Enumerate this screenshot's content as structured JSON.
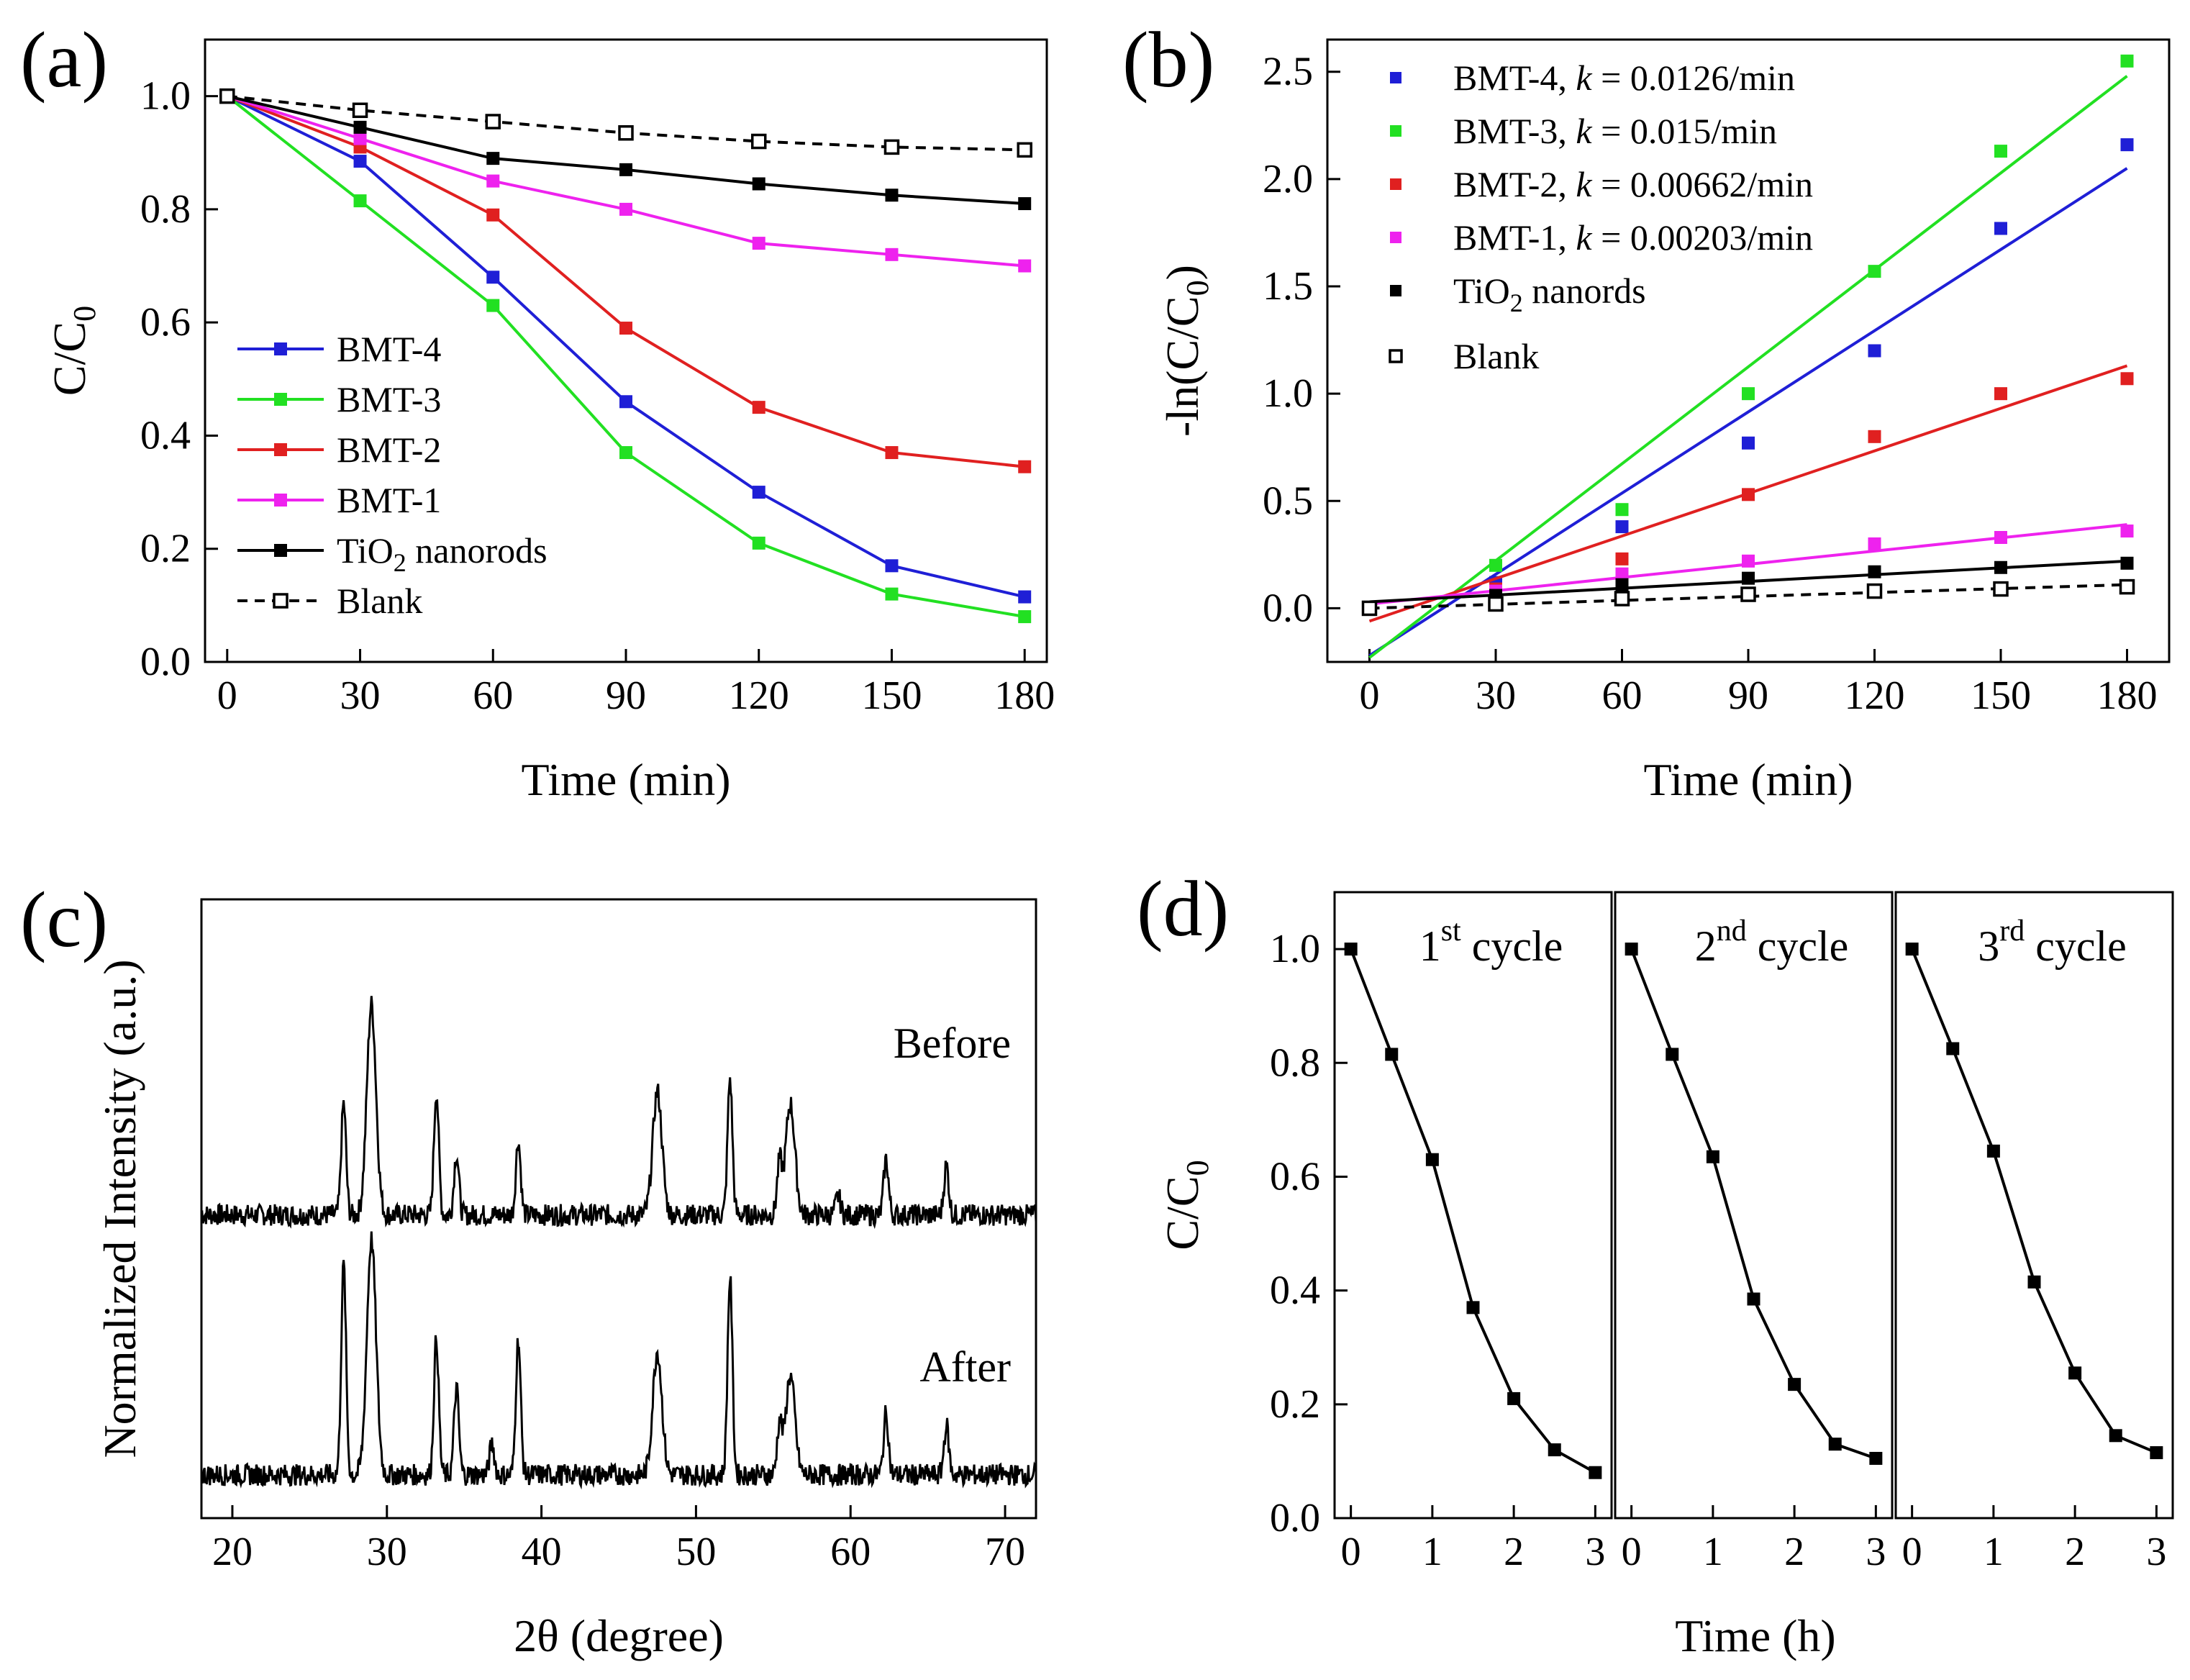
{
  "chart_data": [
    {
      "panel": "(a)",
      "type": "line",
      "xlabel": "Time (min)",
      "ylabel": "C/C",
      "ylabel_sub": "0",
      "xlim": [
        -5,
        185
      ],
      "ylim": [
        0.0,
        1.1
      ],
      "xticks": [
        0,
        30,
        60,
        90,
        120,
        150,
        180
      ],
      "yticks": [
        0.0,
        0.2,
        0.4,
        0.6,
        0.8,
        1.0
      ],
      "x": [
        0,
        30,
        60,
        90,
        120,
        150,
        180
      ],
      "series": [
        {
          "name": "BMT-4",
          "color": "#1f1fd6",
          "values": [
            1.0,
            0.885,
            0.68,
            0.46,
            0.3,
            0.17,
            0.115
          ]
        },
        {
          "name": "BMT-3",
          "color": "#22e022",
          "values": [
            1.0,
            0.815,
            0.63,
            0.37,
            0.21,
            0.12,
            0.08
          ]
        },
        {
          "name": "BMT-2",
          "color": "#e02020",
          "values": [
            1.0,
            0.91,
            0.79,
            0.59,
            0.45,
            0.37,
            0.345
          ]
        },
        {
          "name": "BMT-1",
          "color": "#ee22ee",
          "values": [
            1.0,
            0.925,
            0.85,
            0.8,
            0.74,
            0.72,
            0.7
          ]
        },
        {
          "name": "TiO",
          "name_sub": "2",
          "name_suffix": " nanorods",
          "color": "#000000",
          "values": [
            1.0,
            0.945,
            0.89,
            0.87,
            0.845,
            0.825,
            0.81
          ]
        },
        {
          "name": "Blank",
          "color": "#000000",
          "dashed": true,
          "open_marker": true,
          "values": [
            1.0,
            0.975,
            0.955,
            0.935,
            0.92,
            0.91,
            0.905
          ]
        }
      ]
    },
    {
      "panel": "(b)",
      "type": "scatter",
      "xlabel": "Time (min)",
      "ylabel": "-ln(C/C",
      "ylabel_sub": "0",
      "ylabel_end": ")",
      "xlim": [
        -10,
        190
      ],
      "ylim": [
        -0.25,
        2.65
      ],
      "xticks": [
        0,
        30,
        60,
        90,
        120,
        150,
        180
      ],
      "yticks": [
        0.0,
        0.5,
        1.0,
        1.5,
        2.0,
        2.5
      ],
      "x": [
        0,
        30,
        60,
        90,
        120,
        150,
        180
      ],
      "series": [
        {
          "name": "BMT-4, ",
          "k_label": "k",
          "k_value": " = 0.0126/min",
          "color": "#1f1fd6",
          "values": [
            0.0,
            0.12,
            0.38,
            0.77,
            1.2,
            1.77,
            2.16
          ],
          "fit": [
            -0.22,
            2.05
          ]
        },
        {
          "name": "BMT-3, ",
          "k_label": "k",
          "k_value": " = 0.015/min",
          "color": "#22e022",
          "values": [
            0.0,
            0.2,
            0.46,
            1.0,
            1.57,
            2.13,
            2.55
          ],
          "fit": [
            -0.23,
            2.48
          ]
        },
        {
          "name": "BMT-2, ",
          "k_label": "k",
          "k_value": " = 0.00662/min",
          "color": "#e02020",
          "values": [
            0.0,
            0.09,
            0.23,
            0.53,
            0.8,
            1.0,
            1.07
          ],
          "fit": [
            -0.06,
            1.13
          ]
        },
        {
          "name": "BMT-1, ",
          "k_label": "k",
          "k_value": " = 0.00203/min",
          "color": "#ee22ee",
          "values": [
            0.0,
            0.08,
            0.16,
            0.22,
            0.3,
            0.33,
            0.36
          ],
          "fit": [
            0.02,
            0.39
          ]
        },
        {
          "name": "TiO",
          "name_sub": "2",
          "name_suffix": " nanords",
          "color": "#000000",
          "values": [
            0.0,
            0.06,
            0.11,
            0.14,
            0.17,
            0.19,
            0.21
          ],
          "fit": [
            0.03,
            0.22
          ]
        },
        {
          "name": "Blank",
          "color": "#000000",
          "open_marker": true,
          "values": [
            0.0,
            0.02,
            0.045,
            0.065,
            0.08,
            0.09,
            0.1
          ],
          "fit": [
            0.0,
            0.11
          ],
          "dashed": true
        }
      ]
    },
    {
      "panel": "(c)",
      "type": "line",
      "xlabel": "2θ (degree)",
      "ylabel": "Normalized Intensity (a.u.)",
      "xlim": [
        18,
        72
      ],
      "xticks": [
        20,
        30,
        40,
        50,
        60,
        70
      ],
      "traces": [
        {
          "name": "Before",
          "baseline": 0.42,
          "peaks": [
            [
              27.2,
              0.18
            ],
            [
              29.0,
              0.34
            ],
            [
              33.2,
              0.2
            ],
            [
              34.5,
              0.1
            ],
            [
              38.5,
              0.12
            ],
            [
              47.5,
              0.2
            ],
            [
              52.2,
              0.22
            ],
            [
              55.4,
              0.08
            ],
            [
              56.1,
              0.18
            ],
            [
              59.2,
              0.03
            ],
            [
              62.3,
              0.09
            ],
            [
              66.2,
              0.08
            ]
          ]
        },
        {
          "name": "After",
          "baseline": 0.0,
          "peaks": [
            [
              27.2,
              0.34
            ],
            [
              29.0,
              0.38
            ],
            [
              33.2,
              0.22
            ],
            [
              34.5,
              0.14
            ],
            [
              36.8,
              0.05
            ],
            [
              38.5,
              0.22
            ],
            [
              47.5,
              0.2
            ],
            [
              52.2,
              0.32
            ],
            [
              55.4,
              0.08
            ],
            [
              56.1,
              0.16
            ],
            [
              62.3,
              0.1
            ],
            [
              66.2,
              0.08
            ]
          ]
        }
      ]
    },
    {
      "panel": "(d)",
      "type": "line",
      "xlabel": "Time (h)",
      "ylabel": "C/C",
      "ylabel_sub": "0",
      "ylim": [
        0.0,
        1.1
      ],
      "yticks": [
        0.0,
        0.2,
        0.4,
        0.6,
        0.8,
        1.0
      ],
      "xticks": [
        0,
        1,
        2,
        3
      ],
      "x": [
        0,
        0.5,
        1,
        1.5,
        2,
        2.5,
        3
      ],
      "cycles": [
        {
          "num": "1",
          "sup": "st",
          "word": " cycle",
          "values": [
            1.0,
            0.815,
            0.63,
            0.37,
            0.21,
            0.12,
            0.08
          ]
        },
        {
          "num": "2",
          "sup": "nd",
          "word": " cycle",
          "values": [
            1.0,
            0.815,
            0.635,
            0.385,
            0.235,
            0.13,
            0.105
          ]
        },
        {
          "num": "3",
          "sup": "rd",
          "word": " cycle",
          "values": [
            1.0,
            0.825,
            0.645,
            0.415,
            0.255,
            0.145,
            0.115
          ]
        }
      ]
    }
  ]
}
